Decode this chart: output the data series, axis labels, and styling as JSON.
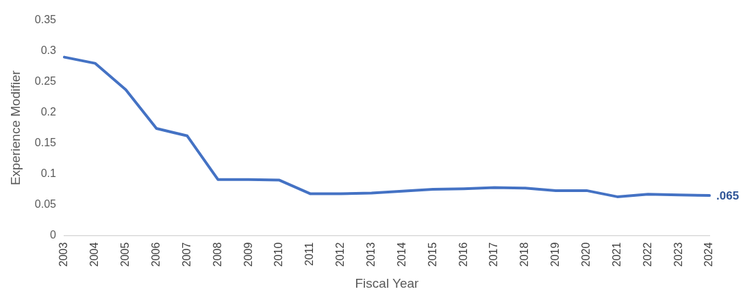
{
  "chart_data": {
    "type": "line",
    "xlabel": "Fiscal Year",
    "ylabel": "Experience Modifier",
    "categories": [
      "2003",
      "2004",
      "2005",
      "2006",
      "2007",
      "2008",
      "2009",
      "2010",
      "2011",
      "2012",
      "2013",
      "2014",
      "2015",
      "2016",
      "2017",
      "2018",
      "2019",
      "2020",
      "2021",
      "2022",
      "2023",
      "2024"
    ],
    "series": [
      {
        "color": "#4472c4",
        "values": [
          0.29,
          0.28,
          0.237,
          0.174,
          0.162,
          0.091,
          0.091,
          0.09,
          0.068,
          0.068,
          0.069,
          0.072,
          0.075,
          0.076,
          0.078,
          0.077,
          0.073,
          0.073,
          0.063,
          0.067,
          0.066,
          0.065
        ],
        "value_labels": [
          null,
          null,
          null,
          null,
          null,
          null,
          null,
          null,
          null,
          null,
          null,
          null,
          null,
          null,
          null,
          null,
          null,
          null,
          null,
          null,
          null,
          ".065"
        ]
      }
    ],
    "ylim": [
      0,
      0.35
    ],
    "yticks": [
      0,
      0.05,
      0.1,
      0.15,
      0.2,
      0.25,
      0.3,
      0.35
    ],
    "grid": false,
    "legend": false,
    "marker": "none",
    "line_style": "solid"
  }
}
